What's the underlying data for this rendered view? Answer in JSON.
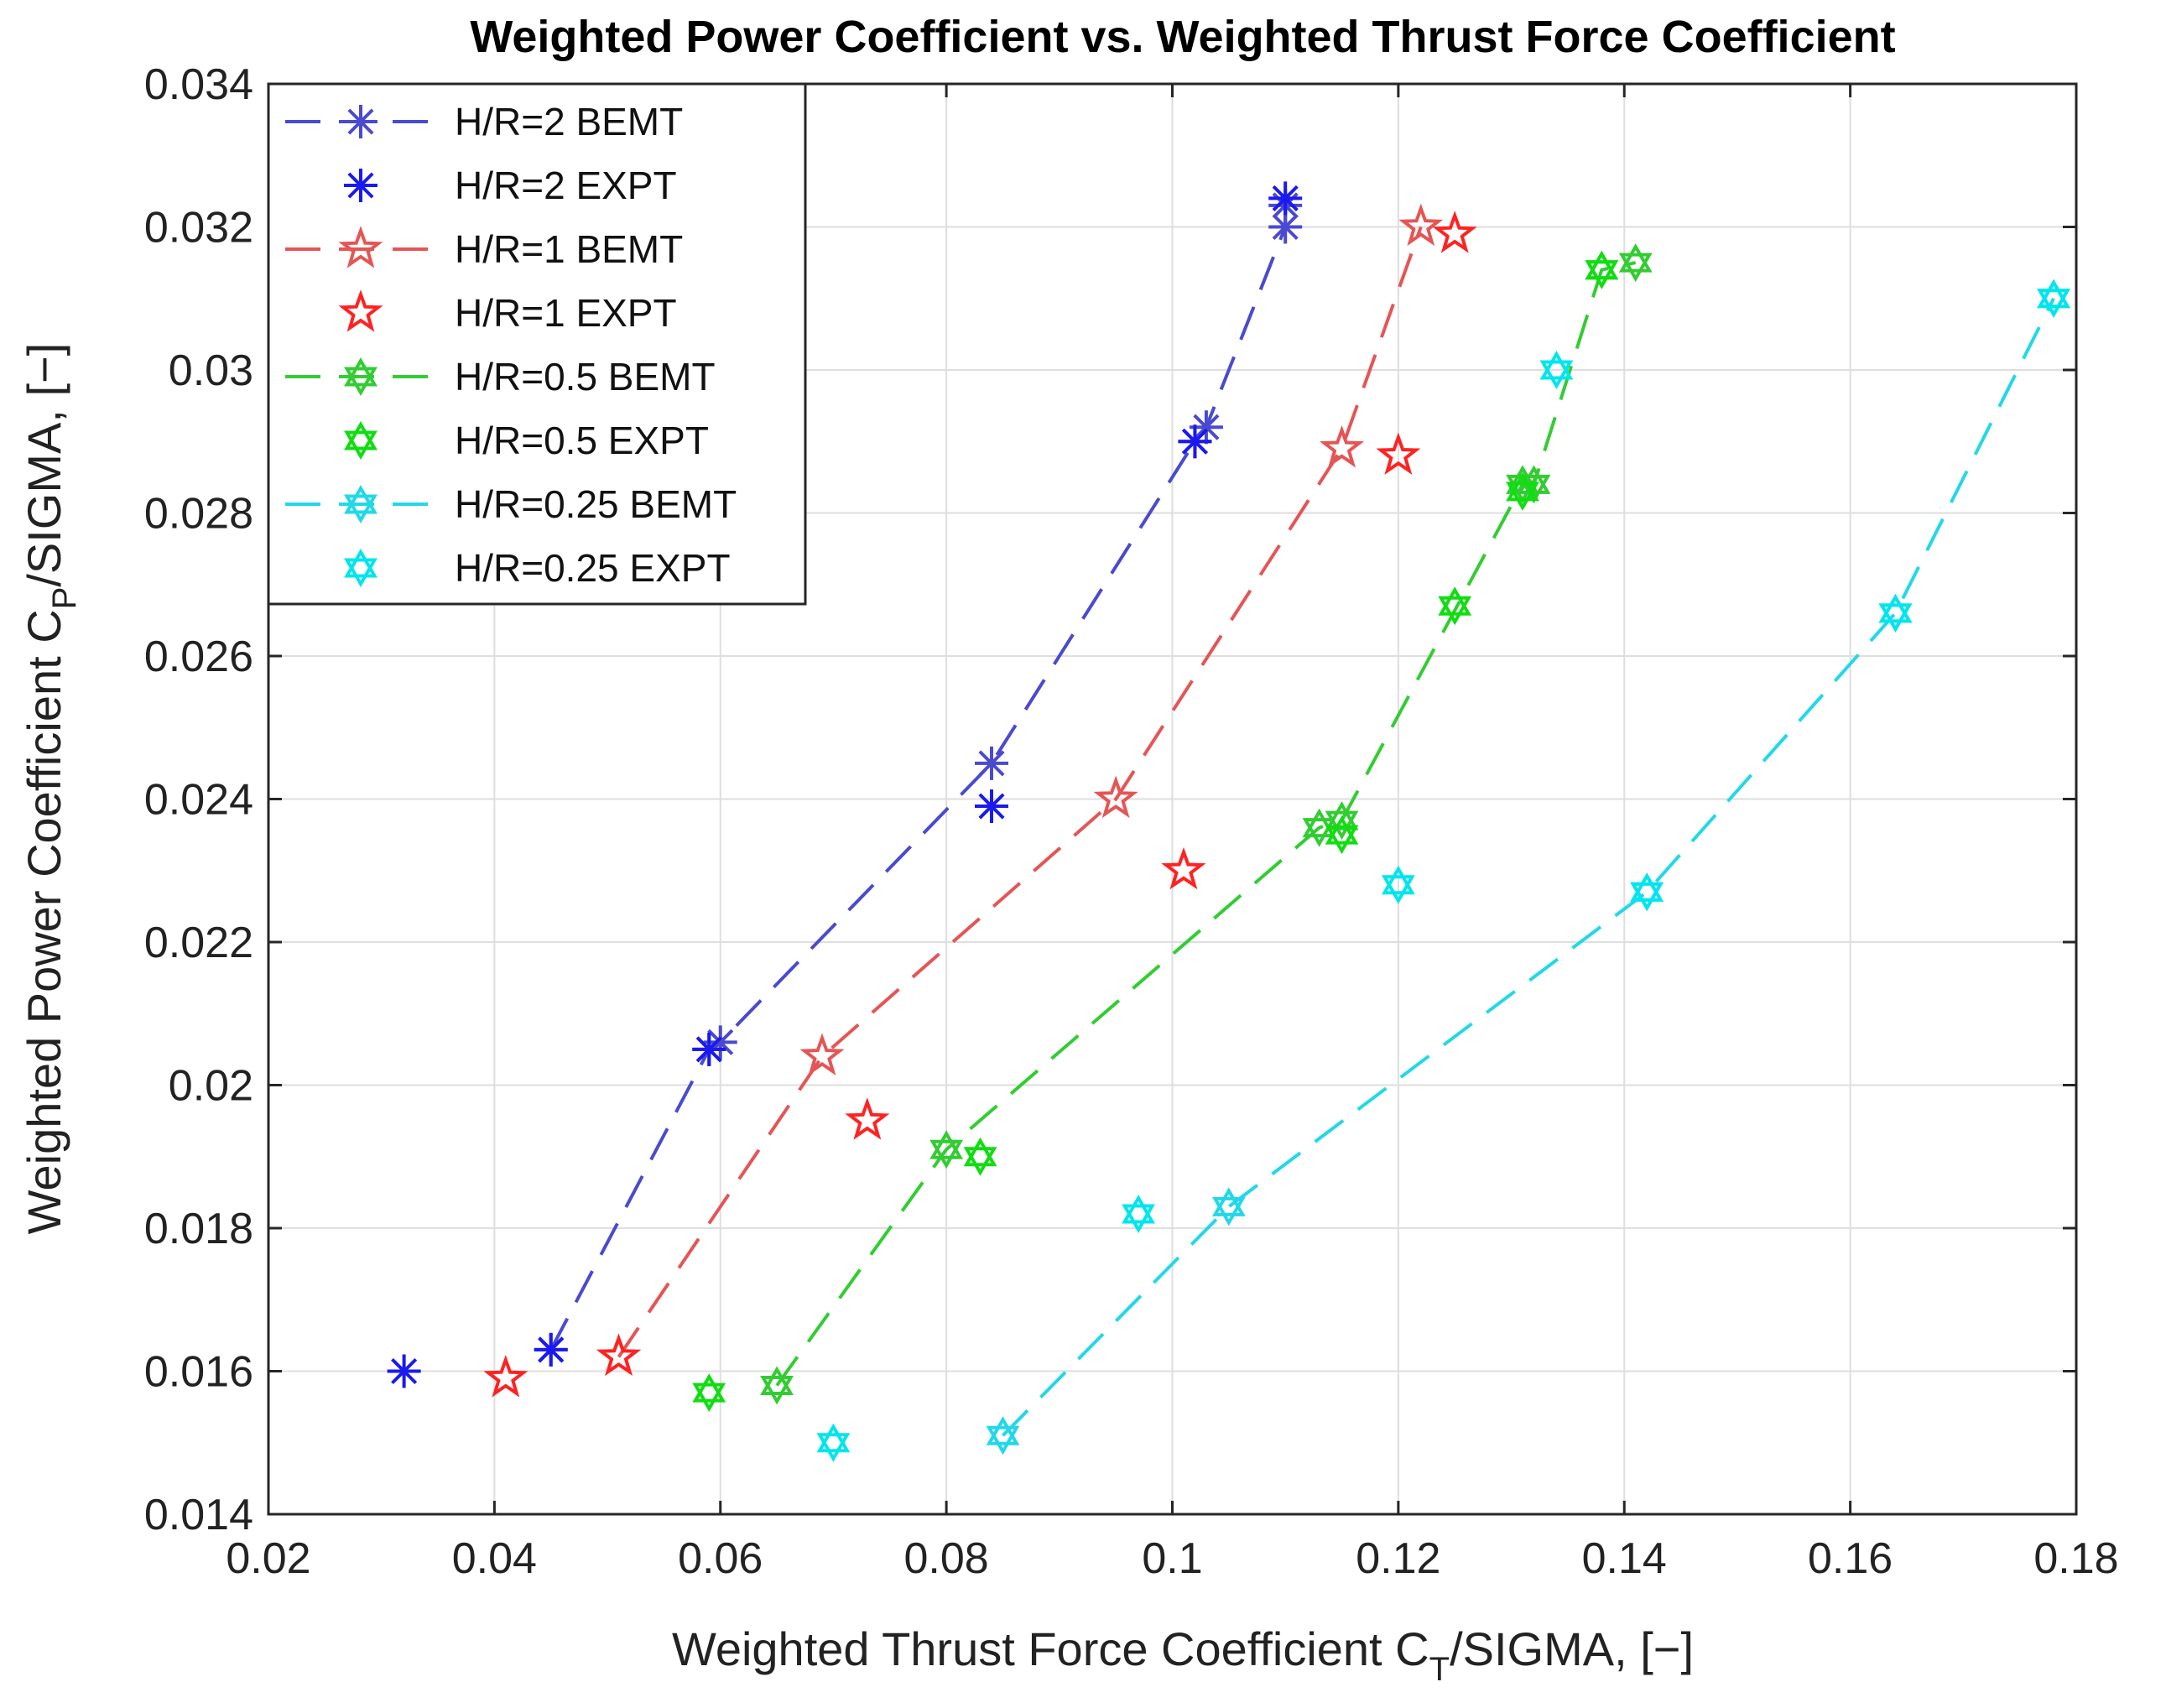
{
  "chart_data": {
    "type": "line",
    "title": "Weighted Power Coefficient vs. Weighted Thrust Force Coefficient",
    "xlabel": {
      "main": "Weighted Thrust Force Coefficient C",
      "sub": "T",
      "rest": "/SIGMA, [−]"
    },
    "ylabel": {
      "main": "Weighted Power Coefficient C",
      "sub": "P",
      "rest": "/SIGMA, [−]"
    },
    "xlim": [
      0.02,
      0.18
    ],
    "ylim": [
      0.014,
      0.034
    ],
    "xticks": [
      0.02,
      0.04,
      0.06,
      0.08,
      0.1,
      0.12,
      0.14,
      0.16,
      0.18
    ],
    "xtick_labels": [
      "0.02",
      "0.04",
      "0.06",
      "0.08",
      "0.1",
      "0.12",
      "0.14",
      "0.16",
      "0.18"
    ],
    "yticks": [
      0.014,
      0.016,
      0.018,
      0.02,
      0.022,
      0.024,
      0.026,
      0.028,
      0.03,
      0.032,
      0.034
    ],
    "ytick_labels": [
      "0.014",
      "0.016",
      "0.018",
      "0.02",
      "0.022",
      "0.024",
      "0.026",
      "0.028",
      "0.03",
      "0.032",
      "0.034"
    ],
    "grid": true,
    "legend_position": "top-left",
    "series": [
      {
        "name": "H/R=2 BEMT",
        "kind": "bemt",
        "marker": "asterisk",
        "color": "#4a4ad0",
        "x": [
          0.045,
          0.059,
          0.06,
          0.084,
          0.102,
          0.103,
          0.11,
          0.11
        ],
        "y": [
          0.0163,
          0.0205,
          0.0206,
          0.0245,
          0.029,
          0.0292,
          0.032,
          0.0323
        ]
      },
      {
        "name": "H/R=2 EXPT",
        "kind": "expt",
        "marker": "asterisk",
        "color": "#1a1aee",
        "x": [
          0.032,
          0.045,
          0.059,
          0.084,
          0.102,
          0.11
        ],
        "y": [
          0.016,
          0.0163,
          0.0205,
          0.0239,
          0.029,
          0.0324
        ]
      },
      {
        "name": "H/R=1 BEMT",
        "kind": "bemt",
        "marker": "star",
        "color": "#e55555",
        "x": [
          0.051,
          0.069,
          0.095,
          0.115,
          0.122
        ],
        "y": [
          0.0162,
          0.0204,
          0.024,
          0.0289,
          0.032
        ]
      },
      {
        "name": "H/R=1 EXPT",
        "kind": "expt",
        "marker": "star",
        "color": "#ff2222",
        "x": [
          0.041,
          0.051,
          0.073,
          0.101,
          0.12,
          0.125
        ],
        "y": [
          0.0159,
          0.0162,
          0.0195,
          0.023,
          0.0288,
          0.0319
        ]
      },
      {
        "name": "H/R=0.5 BEMT",
        "kind": "bemt",
        "marker": "hexagram",
        "color": "#33cc33",
        "x": [
          0.065,
          0.08,
          0.113,
          0.115,
          0.131,
          0.132,
          0.138,
          0.141
        ],
        "y": [
          0.0158,
          0.0191,
          0.0236,
          0.0237,
          0.0284,
          0.0284,
          0.0314,
          0.0315
        ]
      },
      {
        "name": "H/R=0.5 EXPT",
        "kind": "expt",
        "marker": "hexagram",
        "color": "#11dd11",
        "x": [
          0.059,
          0.083,
          0.115,
          0.125,
          0.131,
          0.138
        ],
        "y": [
          0.0157,
          0.019,
          0.0235,
          0.0267,
          0.0283,
          0.0314
        ]
      },
      {
        "name": "H/R=0.25 BEMT",
        "kind": "bemt",
        "marker": "hexagram",
        "color": "#22d8e8",
        "x": [
          0.085,
          0.105,
          0.142,
          0.164,
          0.178
        ],
        "y": [
          0.0151,
          0.0183,
          0.0227,
          0.0266,
          0.031
        ]
      },
      {
        "name": "H/R=0.25 EXPT",
        "kind": "expt",
        "marker": "hexagram",
        "color": "#00e5ee",
        "x": [
          0.07,
          0.097,
          0.12,
          0.134,
          0.142,
          0.164,
          0.178
        ],
        "y": [
          0.015,
          0.0182,
          0.0228,
          0.03,
          0.0227,
          0.0266,
          0.031
        ]
      }
    ]
  }
}
